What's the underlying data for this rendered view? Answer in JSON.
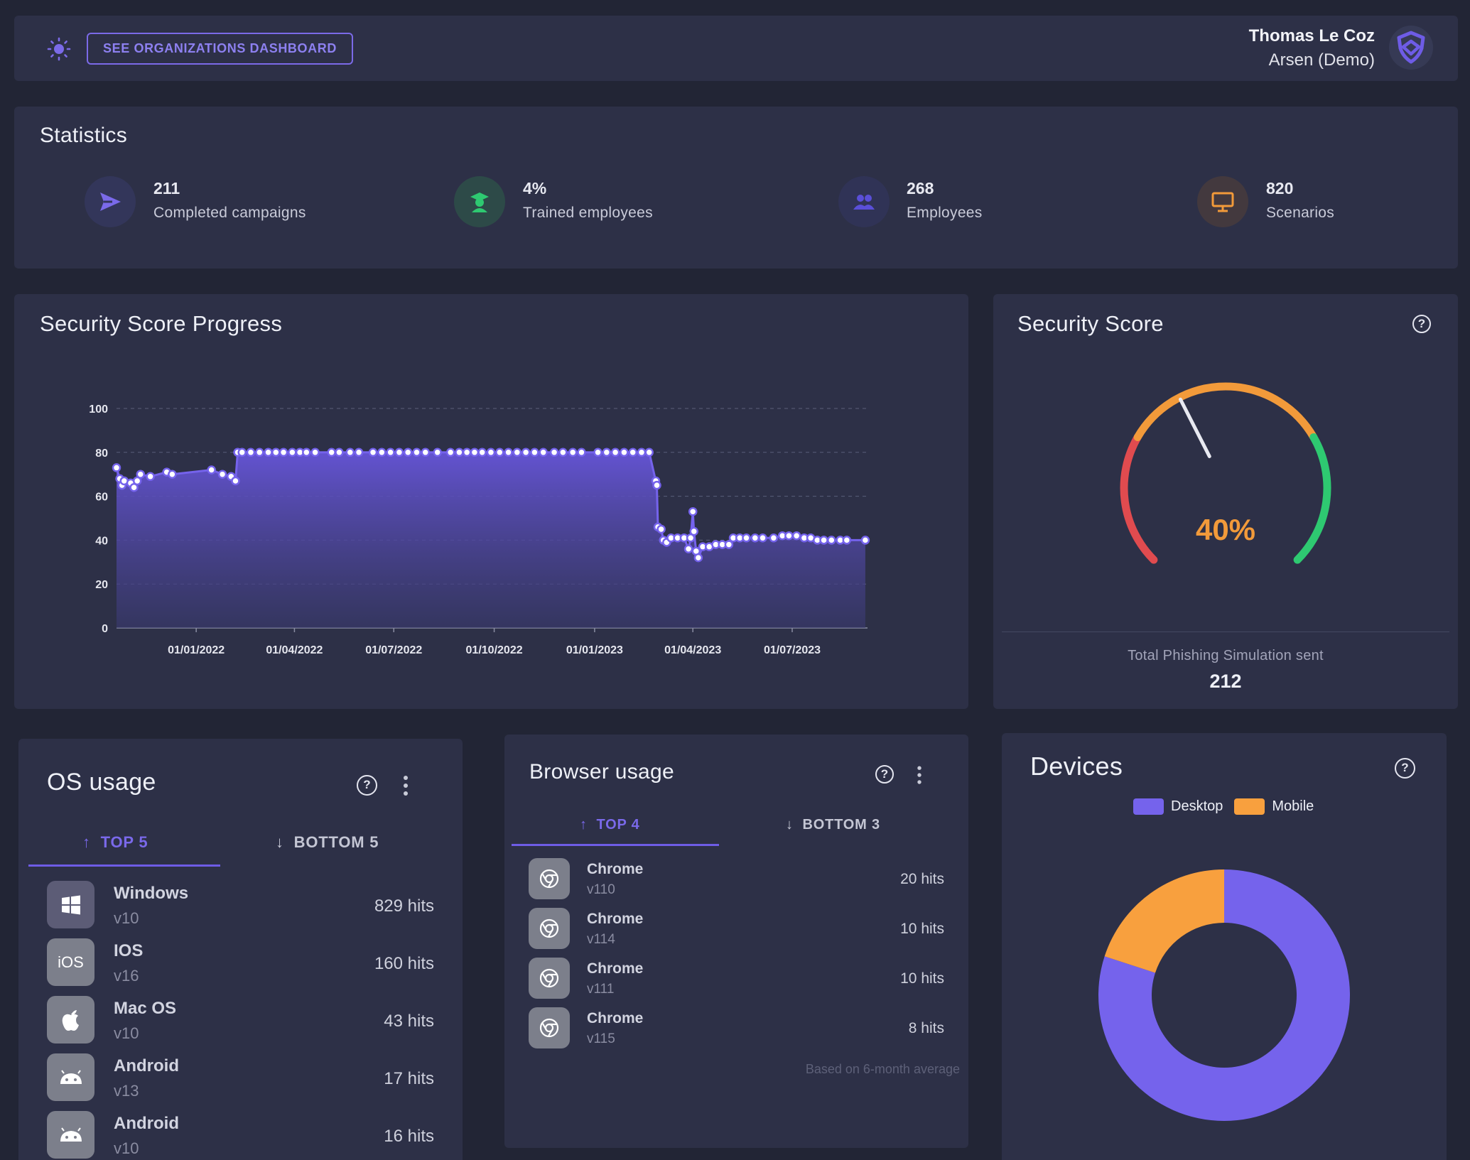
{
  "header": {
    "orgs_button": "SEE ORGANIZATIONS DASHBOARD",
    "user_name": "Thomas Le Coz",
    "user_org": "Arsen (Demo)"
  },
  "statistics": {
    "title": "Statistics",
    "items": [
      {
        "value": "211",
        "label": "Completed campaigns",
        "icon": "send-icon",
        "color": "#7a6ae9"
      },
      {
        "value": "4%",
        "label": "Trained employees",
        "icon": "graduate-icon",
        "color": "#2ec971"
      },
      {
        "value": "268",
        "label": "Employees",
        "icon": "users-icon",
        "color": "#5a4fd8"
      },
      {
        "value": "820",
        "label": "Scenarios",
        "icon": "monitor-icon",
        "color": "#f29a3a"
      }
    ]
  },
  "progress": {
    "title": "Security Score Progress"
  },
  "chart_data": {
    "type": "area",
    "title": "Security Score Progress",
    "xlabel": "",
    "ylabel": "",
    "ylim": [
      0,
      100
    ],
    "yticks": [
      0,
      20,
      40,
      60,
      80,
      100
    ],
    "xticks": [
      "01/01/2022",
      "01/04/2022",
      "01/07/2022",
      "01/10/2022",
      "01/01/2023",
      "01/04/2023",
      "01/07/2023"
    ],
    "x_range": [
      "2021-10-20",
      "2023-09-08"
    ],
    "grid": true,
    "points": [
      [
        "2021-10-20",
        73
      ],
      [
        "2021-10-23",
        68
      ],
      [
        "2021-10-25",
        65
      ],
      [
        "2021-10-27",
        67
      ],
      [
        "2021-11-02",
        66
      ],
      [
        "2021-11-05",
        64
      ],
      [
        "2021-11-08",
        67
      ],
      [
        "2021-11-11",
        70
      ],
      [
        "2021-11-20",
        69
      ],
      [
        "2021-12-05",
        71
      ],
      [
        "2021-12-10",
        70
      ],
      [
        "2022-01-15",
        72
      ],
      [
        "2022-01-25",
        70
      ],
      [
        "2022-02-02",
        69
      ],
      [
        "2022-02-06",
        67
      ],
      [
        "2022-02-08",
        80
      ],
      [
        "2022-02-12",
        80
      ],
      [
        "2022-02-20",
        80
      ],
      [
        "2022-02-28",
        80
      ],
      [
        "2022-03-08",
        80
      ],
      [
        "2022-03-15",
        80
      ],
      [
        "2022-03-22",
        80
      ],
      [
        "2022-03-30",
        80
      ],
      [
        "2022-04-06",
        80
      ],
      [
        "2022-04-12",
        80
      ],
      [
        "2022-04-20",
        80
      ],
      [
        "2022-05-05",
        80
      ],
      [
        "2022-05-12",
        80
      ],
      [
        "2022-05-22",
        80
      ],
      [
        "2022-05-30",
        80
      ],
      [
        "2022-06-12",
        80
      ],
      [
        "2022-06-20",
        80
      ],
      [
        "2022-06-28",
        80
      ],
      [
        "2022-07-06",
        80
      ],
      [
        "2022-07-14",
        80
      ],
      [
        "2022-07-22",
        80
      ],
      [
        "2022-07-30",
        80
      ],
      [
        "2022-08-10",
        80
      ],
      [
        "2022-08-22",
        80
      ],
      [
        "2022-08-30",
        80
      ],
      [
        "2022-09-06",
        80
      ],
      [
        "2022-09-13",
        80
      ],
      [
        "2022-09-20",
        80
      ],
      [
        "2022-09-28",
        80
      ],
      [
        "2022-10-06",
        80
      ],
      [
        "2022-10-14",
        80
      ],
      [
        "2022-10-22",
        80
      ],
      [
        "2022-10-30",
        80
      ],
      [
        "2022-11-07",
        80
      ],
      [
        "2022-11-15",
        80
      ],
      [
        "2022-11-25",
        80
      ],
      [
        "2022-12-03",
        80
      ],
      [
        "2022-12-12",
        80
      ],
      [
        "2022-12-20",
        80
      ],
      [
        "2023-01-04",
        80
      ],
      [
        "2023-01-12",
        80
      ],
      [
        "2023-01-20",
        80
      ],
      [
        "2023-01-28",
        80
      ],
      [
        "2023-02-05",
        80
      ],
      [
        "2023-02-13",
        80
      ],
      [
        "2023-02-20",
        80
      ],
      [
        "2023-02-26",
        67
      ],
      [
        "2023-02-27",
        65
      ],
      [
        "2023-02-28",
        46
      ],
      [
        "2023-03-03",
        45
      ],
      [
        "2023-03-05",
        40
      ],
      [
        "2023-03-08",
        39
      ],
      [
        "2023-03-12",
        41
      ],
      [
        "2023-03-18",
        41
      ],
      [
        "2023-03-24",
        41
      ],
      [
        "2023-03-28",
        36
      ],
      [
        "2023-03-30",
        41
      ],
      [
        "2023-04-01",
        53
      ],
      [
        "2023-04-02",
        44
      ],
      [
        "2023-04-04",
        35
      ],
      [
        "2023-04-06",
        32
      ],
      [
        "2023-04-10",
        37
      ],
      [
        "2023-04-16",
        37
      ],
      [
        "2023-04-22",
        38
      ],
      [
        "2023-04-28",
        38
      ],
      [
        "2023-05-04",
        38
      ],
      [
        "2023-05-08",
        41
      ],
      [
        "2023-05-14",
        41
      ],
      [
        "2023-05-20",
        41
      ],
      [
        "2023-05-28",
        41
      ],
      [
        "2023-06-04",
        41
      ],
      [
        "2023-06-14",
        41
      ],
      [
        "2023-06-22",
        42
      ],
      [
        "2023-06-28",
        42
      ],
      [
        "2023-07-05",
        42
      ],
      [
        "2023-07-12",
        41
      ],
      [
        "2023-07-18",
        41
      ],
      [
        "2023-07-24",
        40
      ],
      [
        "2023-07-30",
        40
      ],
      [
        "2023-08-06",
        40
      ],
      [
        "2023-08-14",
        40
      ],
      [
        "2023-08-20",
        40
      ],
      [
        "2023-09-06",
        40
      ]
    ]
  },
  "score": {
    "title": "Security Score",
    "value_label": "40%",
    "value_fraction": 0.4,
    "footer_label": "Total Phishing Simulation sent",
    "footer_value": "212",
    "colors": {
      "low": "#e04b4f",
      "mid": "#f29a3a",
      "high": "#2ec971"
    }
  },
  "os_usage": {
    "title": "OS usage",
    "tab_top": "TOP 5",
    "tab_bottom": "BOTTOM 5",
    "rows": [
      {
        "name": "Windows",
        "version": "v10",
        "hits": "829 hits",
        "icon": "windows-icon"
      },
      {
        "name": "IOS",
        "version": "v16",
        "hits": "160 hits",
        "icon": "ios-icon",
        "icon_text": "iOS"
      },
      {
        "name": "Mac OS",
        "version": "v10",
        "hits": "43 hits",
        "icon": "apple-icon"
      },
      {
        "name": "Android",
        "version": "v13",
        "hits": "17 hits",
        "icon": "android-icon"
      },
      {
        "name": "Android",
        "version": "v10",
        "hits": "16 hits",
        "icon": "android-icon"
      }
    ]
  },
  "browser_usage": {
    "title": "Browser usage",
    "tab_top": "TOP 4",
    "tab_bottom": "BOTTOM 3",
    "rows": [
      {
        "name": "Chrome",
        "version": "v110",
        "hits": "20 hits",
        "icon": "chrome-icon"
      },
      {
        "name": "Chrome",
        "version": "v114",
        "hits": "10 hits",
        "icon": "chrome-icon"
      },
      {
        "name": "Chrome",
        "version": "v111",
        "hits": "10 hits",
        "icon": "chrome-icon"
      },
      {
        "name": "Chrome",
        "version": "v115",
        "hits": "8 hits",
        "icon": "chrome-icon"
      }
    ],
    "footnote": "Based on 6-month average"
  },
  "devices": {
    "title": "Devices",
    "legend": [
      {
        "name": "Desktop",
        "color": "#7563ec"
      },
      {
        "name": "Mobile",
        "color": "#f8a03e"
      }
    ],
    "slices": [
      {
        "name": "Desktop",
        "value": 80,
        "color": "#7563ec"
      },
      {
        "name": "Mobile",
        "value": 20,
        "color": "#f8a03e"
      }
    ]
  }
}
